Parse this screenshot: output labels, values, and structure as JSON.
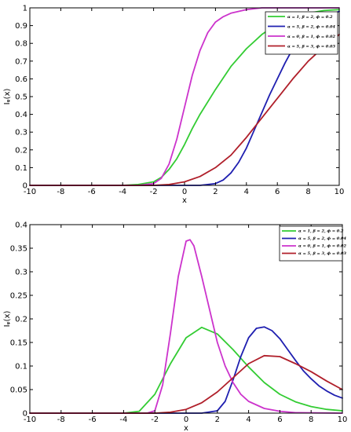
{
  "chart_data": [
    {
      "type": "line",
      "xlabel": "x",
      "ylabel": "Iᵩ(x)",
      "xlim": [
        -10,
        10
      ],
      "ylim": [
        0,
        1
      ],
      "xticks": [
        -10,
        -8,
        -6,
        -4,
        -2,
        0,
        2,
        4,
        6,
        8,
        10
      ],
      "yticks": [
        0,
        0.1,
        0.2,
        0.3,
        0.4,
        0.5,
        0.6,
        0.7,
        0.8,
        0.9,
        1
      ],
      "ytick_labels": [
        "0",
        "0.1",
        "0.2",
        "0.3",
        "0.4",
        "0.5",
        "0.6",
        "0.7",
        "0.8",
        "0.9",
        "1"
      ],
      "legend_position": "top-right",
      "grid": false,
      "series": [
        {
          "name": "α = 1, β = 2, ϕ = 0.2",
          "color": "#33cc33",
          "x": [
            -10,
            -4,
            -3,
            -2,
            -1.5,
            -1,
            -0.5,
            0,
            0.5,
            1,
            2,
            3,
            4,
            5,
            6,
            7,
            8,
            9,
            10
          ],
          "y": [
            0,
            0,
            0.005,
            0.02,
            0.045,
            0.09,
            0.15,
            0.23,
            0.32,
            0.4,
            0.54,
            0.67,
            0.77,
            0.85,
            0.91,
            0.95,
            0.97,
            0.985,
            0.99
          ]
        },
        {
          "name": "α = 5, β = 2, ϕ = 0.04",
          "color": "#1f1fb0",
          "x": [
            -10,
            1,
            2,
            2.5,
            3,
            3.5,
            4,
            4.5,
            5,
            5.5,
            6,
            6.5,
            7,
            7.5,
            8,
            9,
            10
          ],
          "y": [
            0,
            0,
            0.01,
            0.03,
            0.07,
            0.13,
            0.21,
            0.31,
            0.41,
            0.51,
            0.6,
            0.69,
            0.77,
            0.83,
            0.88,
            0.95,
            0.98
          ]
        },
        {
          "name": "α = 0, β = 1, ϕ = 0.02",
          "color": "#cc33cc",
          "x": [
            -10,
            -3,
            -2,
            -1.5,
            -1,
            -0.5,
            0,
            0.5,
            1,
            1.5,
            2,
            2.5,
            3,
            4,
            5,
            6,
            10
          ],
          "y": [
            0,
            0,
            0.01,
            0.04,
            0.12,
            0.26,
            0.44,
            0.62,
            0.76,
            0.86,
            0.92,
            0.95,
            0.97,
            0.99,
            1,
            1,
            1
          ]
        },
        {
          "name": "α = 5, β = 3, ϕ = 0.03",
          "color": "#b01f2a",
          "x": [
            -10,
            -2,
            -1,
            0,
            1,
            2,
            3,
            4,
            5,
            6,
            7,
            8,
            9,
            10
          ],
          "y": [
            0,
            0,
            0.005,
            0.02,
            0.05,
            0.1,
            0.17,
            0.27,
            0.38,
            0.49,
            0.6,
            0.7,
            0.78,
            0.85
          ]
        }
      ]
    },
    {
      "type": "line",
      "xlabel": "x",
      "ylabel": "Iᵩ(x)",
      "xlim": [
        -10,
        10
      ],
      "ylim": [
        0,
        0.4
      ],
      "xticks": [
        -10,
        -8,
        -6,
        -4,
        -2,
        0,
        2,
        4,
        6,
        8,
        10
      ],
      "yticks": [
        0,
        0.05,
        0.1,
        0.15,
        0.2,
        0.25,
        0.3,
        0.35,
        0.4
      ],
      "ytick_labels": [
        "0",
        "0.05",
        "0.1",
        "0.15",
        "0.2",
        "0.25",
        "0.3",
        "0.35",
        "0.4"
      ],
      "legend_position": "top-right",
      "grid": false,
      "series": [
        {
          "name": "α = 1, β = 2, ϕ = 0.2",
          "color": "#33cc33",
          "x": [
            -10,
            -4,
            -3,
            -2,
            -1,
            0,
            1,
            2,
            3,
            4,
            5,
            6,
            7,
            8,
            9,
            10
          ],
          "y": [
            0,
            0,
            0.004,
            0.04,
            0.105,
            0.16,
            0.182,
            0.168,
            0.135,
            0.098,
            0.065,
            0.04,
            0.024,
            0.014,
            0.008,
            0.005
          ]
        },
        {
          "name": "α = 5, β = 2, ϕ = 0.04",
          "color": "#1f1fb0",
          "x": [
            -10,
            1,
            2,
            2.5,
            3,
            3.5,
            4,
            4.5,
            5,
            5.5,
            6,
            6.5,
            7,
            7.5,
            8,
            8.5,
            9,
            9.5,
            10
          ],
          "y": [
            0,
            0,
            0.005,
            0.025,
            0.07,
            0.12,
            0.16,
            0.18,
            0.183,
            0.175,
            0.158,
            0.135,
            0.112,
            0.09,
            0.073,
            0.058,
            0.047,
            0.038,
            0.032
          ]
        },
        {
          "name": "α = 0, β = 1, ϕ = 0.02",
          "color": "#cc33cc",
          "x": [
            -10,
            -2.5,
            -2,
            -1.5,
            -1,
            -0.5,
            0,
            0.25,
            0.5,
            1,
            1.5,
            2,
            2.5,
            3,
            3.5,
            4,
            5,
            6,
            7,
            10
          ],
          "y": [
            0,
            0,
            0.005,
            0.06,
            0.17,
            0.29,
            0.365,
            0.368,
            0.355,
            0.29,
            0.22,
            0.15,
            0.1,
            0.065,
            0.04,
            0.025,
            0.01,
            0.004,
            0.001,
            0
          ]
        },
        {
          "name": "α = 5, β = 3, ϕ = 0.03",
          "color": "#b01f2a",
          "x": [
            -10,
            -2,
            -1,
            0,
            1,
            2,
            3,
            4,
            5,
            6,
            7,
            8,
            9,
            10
          ],
          "y": [
            0,
            0,
            0.002,
            0.008,
            0.022,
            0.045,
            0.075,
            0.105,
            0.122,
            0.12,
            0.105,
            0.088,
            0.068,
            0.05
          ]
        }
      ]
    }
  ]
}
